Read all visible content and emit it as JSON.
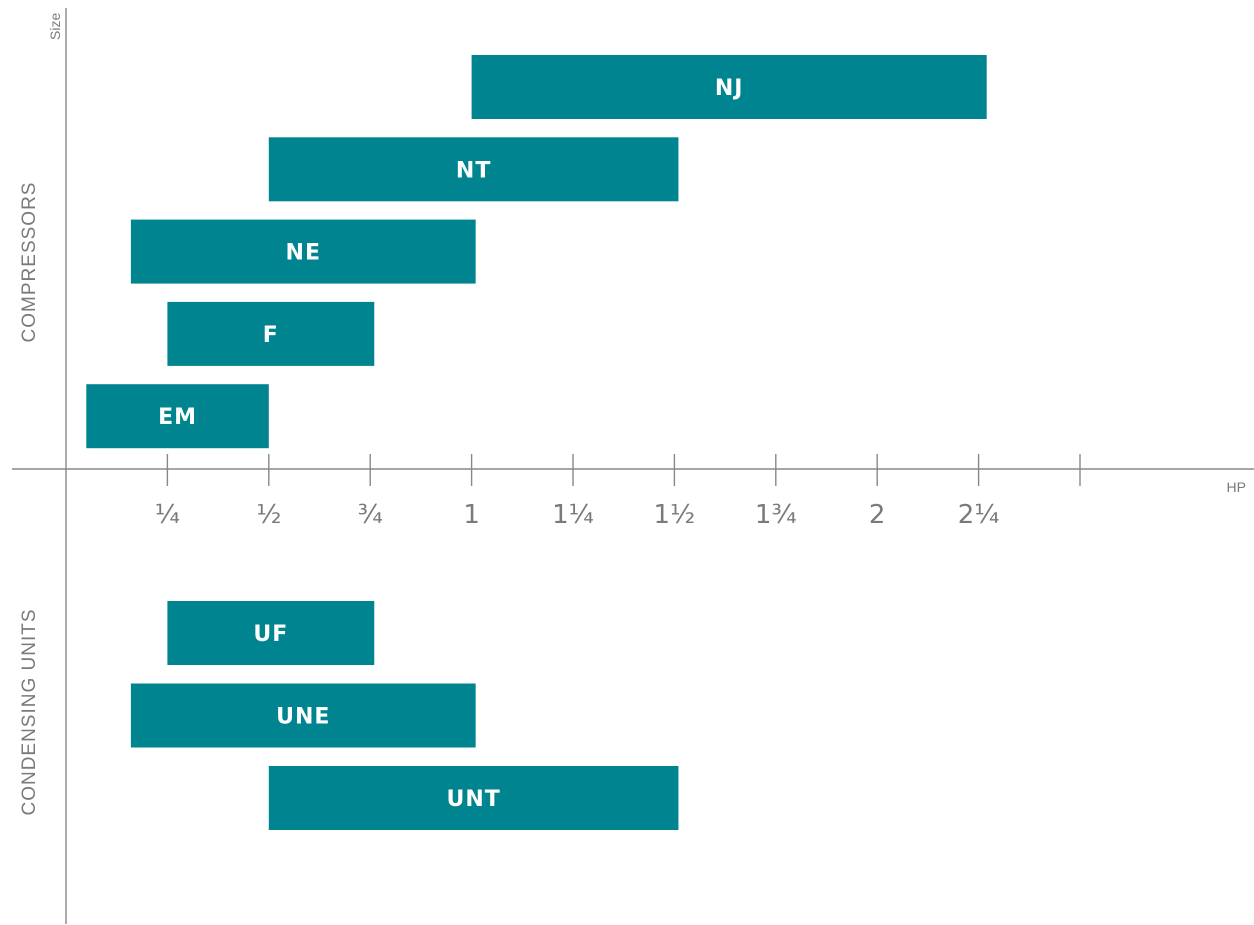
{
  "chart_data": {
    "type": "bar",
    "orientation": "horizontal-range",
    "y_axis_title": "Size",
    "x_axis_title": "HP",
    "xlim": [
      0,
      2.5
    ],
    "x_ticks": [
      {
        "value": 0.25,
        "label": "¼"
      },
      {
        "value": 0.5,
        "label": "½"
      },
      {
        "value": 0.75,
        "label": "¾"
      },
      {
        "value": 1.0,
        "label": "1"
      },
      {
        "value": 1.25,
        "label": "1¼"
      },
      {
        "value": 1.5,
        "label": "1½"
      },
      {
        "value": 1.75,
        "label": "1¾"
      },
      {
        "value": 2.0,
        "label": "2"
      },
      {
        "value": 2.25,
        "label": "2¼"
      },
      {
        "value": 2.5,
        "label": ""
      }
    ],
    "bar_color": "#008590",
    "groups": [
      {
        "name": "COMPRESSORS",
        "bars": [
          {
            "label": "NJ",
            "start": 1.0,
            "end": 2.27
          },
          {
            "label": "NT",
            "start": 0.5,
            "end": 1.51
          },
          {
            "label": "NE",
            "start": 0.16,
            "end": 1.01
          },
          {
            "label": "F",
            "start": 0.25,
            "end": 0.76
          },
          {
            "label": "EM",
            "start": 0.05,
            "end": 0.5
          }
        ]
      },
      {
        "name": "CONDENSING UNITS",
        "bars": [
          {
            "label": "UF",
            "start": 0.25,
            "end": 0.76
          },
          {
            "label": "UNE",
            "start": 0.16,
            "end": 1.01
          },
          {
            "label": "UNT",
            "start": 0.5,
            "end": 1.51
          }
        ]
      }
    ]
  }
}
